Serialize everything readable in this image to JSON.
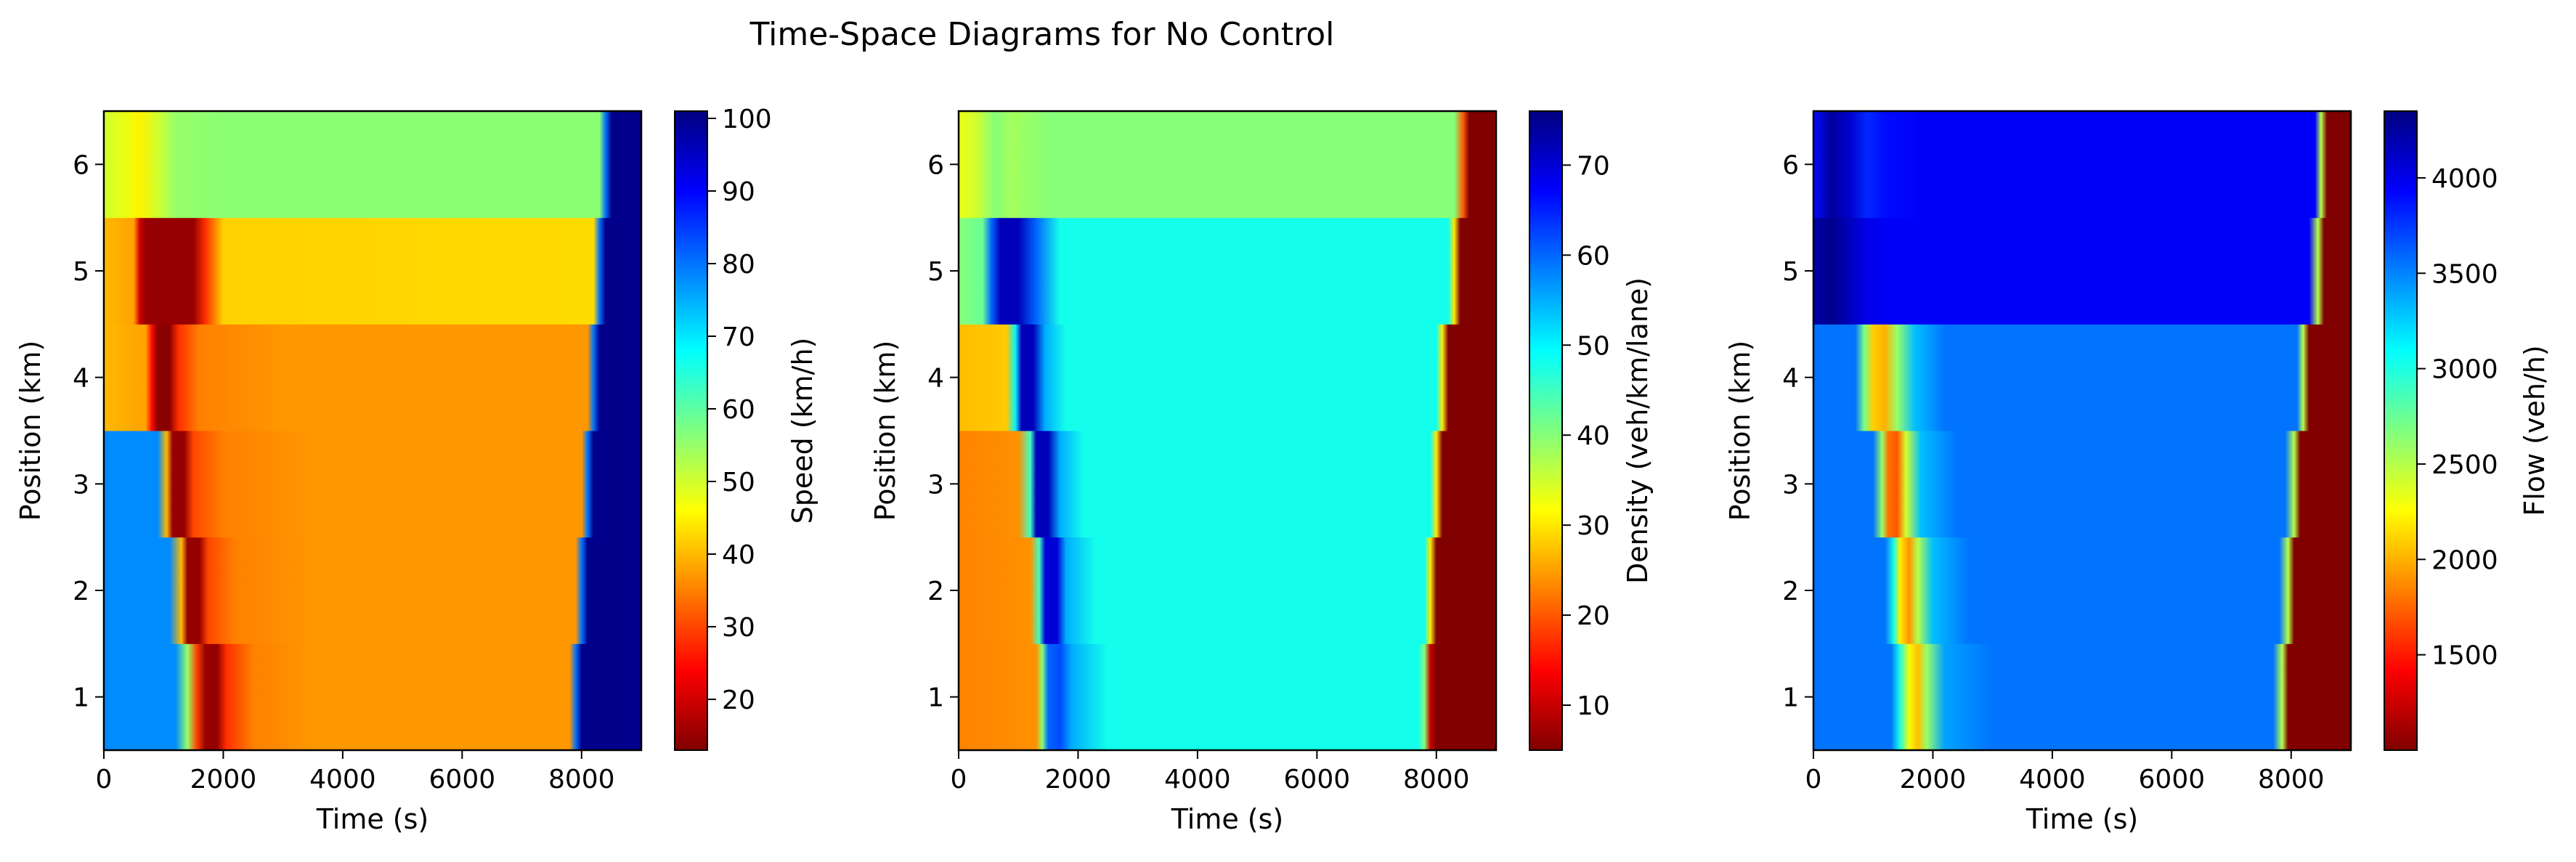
{
  "figure": {
    "title": "Time-Space Diagrams for No Control"
  },
  "chart_data": [
    {
      "type": "heatmap",
      "xlabel": "Time (s)",
      "ylabel": "Position (km)",
      "colorbar_label": "Speed (km/h)",
      "xlim": [
        0,
        9000
      ],
      "ylim": [
        0.5,
        6.5
      ],
      "x_ticks": [
        0,
        2000,
        4000,
        6000,
        8000
      ],
      "y_ticks": [
        1,
        2,
        3,
        4,
        5,
        6
      ],
      "vmin": 13,
      "vmax": 101,
      "cbar_ticks": [
        20,
        30,
        40,
        50,
        60,
        70,
        80,
        90,
        100
      ],
      "colormap": "jet_r",
      "rows": [
        {
          "position_km": 1,
          "knots": [
            [
              0,
              78
            ],
            [
              1200,
              78
            ],
            [
              1400,
              55
            ],
            [
              1550,
              30
            ],
            [
              1700,
              15
            ],
            [
              1900,
              15
            ],
            [
              2050,
              28
            ],
            [
              2500,
              35
            ],
            [
              3500,
              37
            ],
            [
              7800,
              37
            ],
            [
              7900,
              80
            ],
            [
              8000,
              100
            ],
            [
              9000,
              100
            ]
          ]
        },
        {
          "position_km": 2,
          "knots": [
            [
              0,
              78
            ],
            [
              1100,
              78
            ],
            [
              1300,
              40
            ],
            [
              1400,
              15
            ],
            [
              1600,
              15
            ],
            [
              1750,
              30
            ],
            [
              2200,
              35
            ],
            [
              3500,
              37
            ],
            [
              7900,
              37
            ],
            [
              8000,
              80
            ],
            [
              8100,
              100
            ],
            [
              9000,
              100
            ]
          ]
        },
        {
          "position_km": 3,
          "knots": [
            [
              0,
              78
            ],
            [
              900,
              78
            ],
            [
              1050,
              40
            ],
            [
              1150,
              15
            ],
            [
              1350,
              15
            ],
            [
              1500,
              30
            ],
            [
              2000,
              35
            ],
            [
              3500,
              37
            ],
            [
              8000,
              37
            ],
            [
              8100,
              80
            ],
            [
              8200,
              100
            ],
            [
              9000,
              100
            ]
          ]
        },
        {
          "position_km": 4,
          "knots": [
            [
              0,
              40
            ],
            [
              700,
              38
            ],
            [
              800,
              25
            ],
            [
              900,
              14
            ],
            [
              1100,
              14
            ],
            [
              1250,
              28
            ],
            [
              1600,
              35
            ],
            [
              3000,
              37
            ],
            [
              8100,
              37
            ],
            [
              8200,
              80
            ],
            [
              8300,
              100
            ],
            [
              9000,
              100
            ]
          ]
        },
        {
          "position_km": 5,
          "knots": [
            [
              0,
              40
            ],
            [
              500,
              38
            ],
            [
              600,
              20
            ],
            [
              700,
              15
            ],
            [
              1500,
              15
            ],
            [
              1700,
              28
            ],
            [
              2000,
              42
            ],
            [
              8200,
              43
            ],
            [
              8300,
              80
            ],
            [
              8400,
              100
            ],
            [
              9000,
              100
            ]
          ]
        },
        {
          "position_km": 6,
          "knots": [
            [
              0,
              50
            ],
            [
              300,
              48
            ],
            [
              600,
              45
            ],
            [
              900,
              50
            ],
            [
              1200,
              55
            ],
            [
              2000,
              56
            ],
            [
              8300,
              56
            ],
            [
              8400,
              80
            ],
            [
              8500,
              100
            ],
            [
              9000,
              100
            ]
          ]
        }
      ]
    },
    {
      "type": "heatmap",
      "xlabel": "Time (s)",
      "ylabel": "Position (km)",
      "colorbar_label": "Density (veh/km/lane)",
      "xlim": [
        0,
        9000
      ],
      "ylim": [
        0.5,
        6.5
      ],
      "x_ticks": [
        0,
        2000,
        4000,
        6000,
        8000
      ],
      "y_ticks": [
        1,
        2,
        3,
        4,
        5,
        6
      ],
      "vmin": 5,
      "vmax": 76,
      "cbar_ticks": [
        10,
        20,
        30,
        40,
        50,
        60,
        70
      ],
      "colormap": "jet_r",
      "rows": [
        {
          "position_km": 1,
          "knots": [
            [
              0,
              23
            ],
            [
              1300,
              24
            ],
            [
              1400,
              40
            ],
            [
              1500,
              60
            ],
            [
              1700,
              62
            ],
            [
              1900,
              55
            ],
            [
              2500,
              48
            ],
            [
              7700,
              48
            ],
            [
              7800,
              40
            ],
            [
              7900,
              10
            ],
            [
              8000,
              5
            ],
            [
              9000,
              5
            ]
          ]
        },
        {
          "position_km": 2,
          "knots": [
            [
              0,
              23
            ],
            [
              1200,
              24
            ],
            [
              1350,
              45
            ],
            [
              1450,
              70
            ],
            [
              1650,
              70
            ],
            [
              1800,
              55
            ],
            [
              2300,
              48
            ],
            [
              7800,
              48
            ],
            [
              7900,
              30
            ],
            [
              8000,
              5
            ],
            [
              9000,
              5
            ]
          ]
        },
        {
          "position_km": 3,
          "knots": [
            [
              0,
              23
            ],
            [
              1000,
              24
            ],
            [
              1200,
              45
            ],
            [
              1300,
              72
            ],
            [
              1500,
              72
            ],
            [
              1700,
              55
            ],
            [
              2100,
              48
            ],
            [
              7900,
              48
            ],
            [
              8000,
              30
            ],
            [
              8100,
              5
            ],
            [
              9000,
              5
            ]
          ]
        },
        {
          "position_km": 4,
          "knots": [
            [
              0,
              27
            ],
            [
              800,
              28
            ],
            [
              950,
              50
            ],
            [
              1050,
              72
            ],
            [
              1250,
              72
            ],
            [
              1450,
              55
            ],
            [
              1800,
              48
            ],
            [
              8000,
              48
            ],
            [
              8100,
              30
            ],
            [
              8200,
              5
            ],
            [
              9000,
              5
            ]
          ]
        },
        {
          "position_km": 5,
          "knots": [
            [
              0,
              40
            ],
            [
              400,
              42
            ],
            [
              550,
              60
            ],
            [
              700,
              72
            ],
            [
              1000,
              72
            ],
            [
              1300,
              60
            ],
            [
              1700,
              48
            ],
            [
              8200,
              48
            ],
            [
              8300,
              30
            ],
            [
              8400,
              5
            ],
            [
              9000,
              5
            ]
          ]
        },
        {
          "position_km": 6,
          "knots": [
            [
              0,
              33
            ],
            [
              300,
              35
            ],
            [
              600,
              40
            ],
            [
              900,
              38
            ],
            [
              1500,
              40
            ],
            [
              8300,
              40
            ],
            [
              8450,
              20
            ],
            [
              8550,
              5
            ],
            [
              9000,
              5
            ]
          ]
        }
      ]
    },
    {
      "type": "heatmap",
      "xlabel": "Time (s)",
      "ylabel": "Position (km)",
      "colorbar_label": "Flow (veh/h)",
      "xlim": [
        0,
        9000
      ],
      "ylim": [
        0.5,
        6.5
      ],
      "x_ticks": [
        0,
        2000,
        4000,
        6000,
        8000
      ],
      "y_ticks": [
        1,
        2,
        3,
        4,
        5,
        6
      ],
      "vmin": 1000,
      "vmax": 4350,
      "cbar_ticks": [
        1500,
        2000,
        2500,
        3000,
        3500,
        4000
      ],
      "colormap": "jet_r",
      "rows": [
        {
          "position_km": 1,
          "knots": [
            [
              0,
              3550
            ],
            [
              1300,
              3550
            ],
            [
              1450,
              3000
            ],
            [
              1600,
              2300
            ],
            [
              1750,
              2050
            ],
            [
              1900,
              2600
            ],
            [
              2200,
              3400
            ],
            [
              3000,
              3550
            ],
            [
              7700,
              3550
            ],
            [
              7850,
              2500
            ],
            [
              7950,
              1000
            ],
            [
              9000,
              1000
            ]
          ]
        },
        {
          "position_km": 2,
          "knots": [
            [
              0,
              3550
            ],
            [
              1200,
              3550
            ],
            [
              1350,
              3000
            ],
            [
              1450,
              2200
            ],
            [
              1600,
              1900
            ],
            [
              1750,
              2500
            ],
            [
              2000,
              3300
            ],
            [
              2600,
              3550
            ],
            [
              7800,
              3550
            ],
            [
              7950,
              2500
            ],
            [
              8050,
              1000
            ],
            [
              9000,
              1000
            ]
          ]
        },
        {
          "position_km": 3,
          "knots": [
            [
              0,
              3550
            ],
            [
              1000,
              3550
            ],
            [
              1150,
              2600
            ],
            [
              1250,
              1800
            ],
            [
              1400,
              1700
            ],
            [
              1550,
              2400
            ],
            [
              1800,
              3300
            ],
            [
              2400,
              3550
            ],
            [
              7900,
              3550
            ],
            [
              8050,
              2500
            ],
            [
              8150,
              1000
            ],
            [
              9000,
              1000
            ]
          ]
        },
        {
          "position_km": 4,
          "knots": [
            [
              0,
              3550
            ],
            [
              700,
              3550
            ],
            [
              850,
              2700
            ],
            [
              1000,
              2100
            ],
            [
              1200,
              2000
            ],
            [
              1400,
              2600
            ],
            [
              1700,
              3300
            ],
            [
              2200,
              3550
            ],
            [
              8100,
              3550
            ],
            [
              8200,
              2500
            ],
            [
              8300,
              1000
            ],
            [
              9000,
              1000
            ]
          ]
        },
        {
          "position_km": 5,
          "knots": [
            [
              0,
              4200
            ],
            [
              300,
              4320
            ],
            [
              600,
              4150
            ],
            [
              900,
              4000
            ],
            [
              1400,
              3950
            ],
            [
              8300,
              3950
            ],
            [
              8450,
              2500
            ],
            [
              8550,
              1000
            ],
            [
              9000,
              1000
            ]
          ]
        },
        {
          "position_km": 6,
          "knots": [
            [
              0,
              3900
            ],
            [
              300,
              4250
            ],
            [
              600,
              4100
            ],
            [
              900,
              3800
            ],
            [
              1200,
              3900
            ],
            [
              1800,
              3950
            ],
            [
              8400,
              3950
            ],
            [
              8500,
              2500
            ],
            [
              8600,
              1000
            ],
            [
              9000,
              1000
            ]
          ]
        }
      ]
    }
  ]
}
